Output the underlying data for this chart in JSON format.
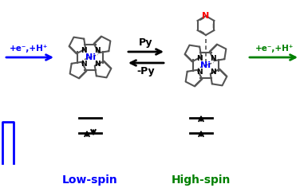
{
  "bg_color": "#ffffff",
  "left_arrow_color": "#0000ff",
  "right_arrow_color": "#008000",
  "label_low_spin": "Low-spin",
  "label_high_spin": "High-spin",
  "label_low_spin_color": "#0000ff",
  "label_high_spin_color": "#008000",
  "left_text": "+e⁻,+H⁺",
  "right_text": "+e⁻,+H⁺",
  "eq_top": "Py",
  "eq_bot": "-Py",
  "orbital_line_color": "#000000",
  "porphyrin_color": "#555555",
  "ni_color": "#0000ff",
  "N_porphyrin_color": "#000000",
  "pyridine_N_color": "#ff0000",
  "blue_box_color": "#0000ff",
  "figsize": [
    3.76,
    2.36
  ],
  "dpi": 100
}
